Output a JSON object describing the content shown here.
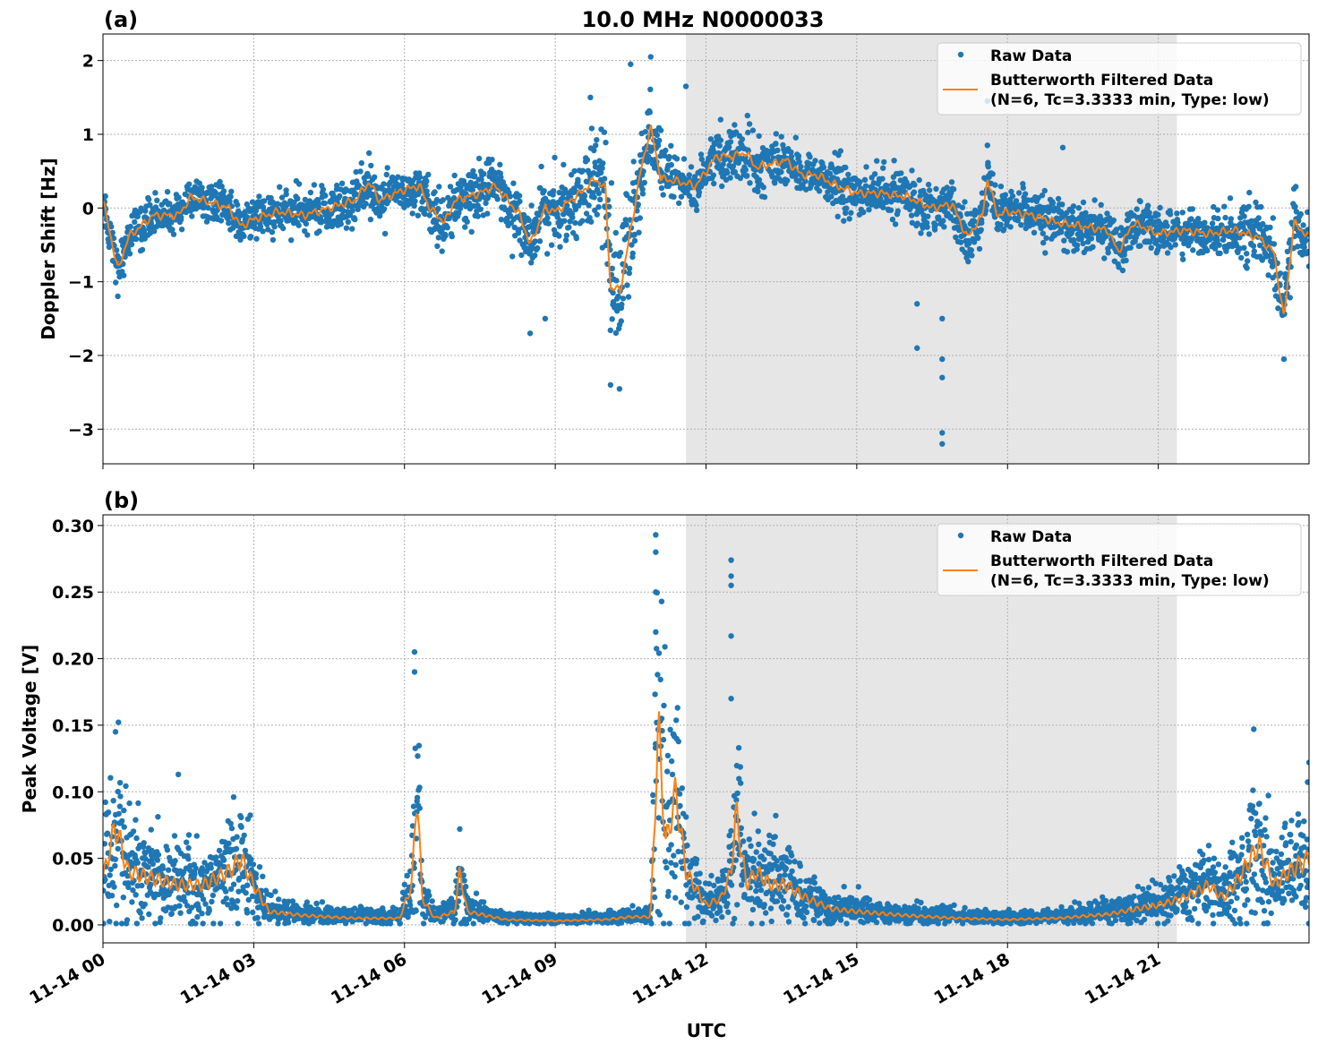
{
  "title": "10.0 MHz N0000033",
  "xlabel": "UTC",
  "colors": {
    "raw": "#1f77b4",
    "filtered": "#ff7f0e",
    "shade": "#e6e6e6"
  },
  "chart_data": [
    {
      "type": "scatter",
      "panel_label": "(a)",
      "ylabel": "Doppler Shift [Hz]",
      "xlim_hours": [
        0,
        24
      ],
      "ylim": [
        -3.47,
        2.36
      ],
      "yticks": [
        -3,
        -2,
        -1,
        0,
        1,
        2
      ],
      "ytick_labels": [
        "−3",
        "−2",
        "−1",
        "0",
        "1",
        "2"
      ],
      "xtick_hours": [
        0,
        3,
        6,
        9,
        12,
        15,
        18,
        21
      ],
      "xtick_labels": [
        "11-14 00",
        "11-14 03",
        "11-14 06",
        "11-14 09",
        "11-14 12",
        "11-14 15",
        "11-14 18",
        "11-14 21"
      ],
      "grid": true,
      "shaded_span_hours": [
        11.6,
        21.37
      ],
      "legend": {
        "placement": "upper right",
        "raw": "Raw Data",
        "filtered_line1": "Butterworth Filtered Data",
        "filtered_line2": "(N=6, Tc=3.3333 min, Type: low)"
      },
      "filtered": {
        "x_hours": [
          0,
          0.3,
          0.5,
          1,
          1.5,
          1.75,
          2,
          2.5,
          2.75,
          3,
          3.5,
          4,
          4.5,
          5,
          5.3,
          5.5,
          6,
          6.3,
          6.5,
          6.8,
          7,
          7.5,
          7.8,
          8,
          8.3,
          8.5,
          8.8,
          9,
          9.5,
          9.8,
          10,
          10.1,
          10.3,
          10.5,
          10.7,
          10.9,
          11.1,
          11.5,
          11.8,
          12,
          12.2,
          12.5,
          12.8,
          13,
          13.3,
          13.6,
          13.9,
          14.2,
          14.6,
          15,
          15.5,
          16,
          16.5,
          16.9,
          17.2,
          17.5,
          17.6,
          17.8,
          18,
          18.5,
          19,
          19.5,
          20,
          20.2,
          20.5,
          21,
          21.5,
          22,
          22.5,
          23,
          23.3,
          23.5,
          23.7,
          24
        ],
        "y": [
          0.1,
          -0.85,
          -0.4,
          -0.1,
          -0.1,
          0.15,
          0.1,
          0.0,
          -0.25,
          -0.15,
          -0.05,
          -0.1,
          0.0,
          0.1,
          0.35,
          0.1,
          0.25,
          0.3,
          0.0,
          -0.2,
          0.1,
          0.2,
          0.3,
          0.15,
          -0.1,
          -0.5,
          0.0,
          -0.05,
          0.2,
          0.4,
          0.25,
          -1.1,
          -1.1,
          -0.3,
          0.5,
          1.1,
          0.4,
          0.35,
          0.3,
          0.5,
          0.7,
          0.7,
          0.75,
          0.55,
          0.6,
          0.65,
          0.45,
          0.45,
          0.3,
          0.2,
          0.2,
          0.15,
          0.0,
          0.05,
          -0.4,
          -0.1,
          0.4,
          -0.1,
          -0.05,
          -0.1,
          -0.2,
          -0.25,
          -0.3,
          -0.6,
          -0.2,
          -0.35,
          -0.3,
          -0.35,
          -0.3,
          -0.4,
          -0.6,
          -1.5,
          -0.2,
          -0.4
        ]
      },
      "raw_spread": {
        "x_hours": [
          0,
          1,
          3,
          5,
          6,
          8,
          9.5,
          10,
          10.5,
          11,
          11.5,
          12,
          14,
          16,
          18,
          20,
          22,
          23.5,
          24
        ],
        "half_width": [
          0.35,
          0.25,
          0.3,
          0.4,
          0.35,
          0.45,
          0.5,
          0.9,
          1.0,
          0.6,
          0.25,
          0.4,
          0.35,
          0.35,
          0.35,
          0.35,
          0.3,
          0.5,
          0.35
        ]
      },
      "raw_outliers": [
        [
          16.2,
          -1.3
        ],
        [
          16.2,
          -1.9
        ],
        [
          16.7,
          -1.5
        ],
        [
          16.7,
          -2.05
        ],
        [
          16.7,
          -2.3
        ],
        [
          16.7,
          -3.05
        ],
        [
          16.7,
          -3.2
        ],
        [
          17.6,
          1.45
        ],
        [
          17.6,
          0.85
        ],
        [
          11.6,
          1.65
        ],
        [
          10.5,
          1.95
        ],
        [
          10.9,
          2.05
        ],
        [
          9.7,
          1.5
        ],
        [
          8.5,
          -1.7
        ],
        [
          8.8,
          -1.5
        ],
        [
          10.1,
          -2.4
        ],
        [
          23.5,
          -2.05
        ],
        [
          19.1,
          0.82
        ]
      ]
    },
    {
      "type": "scatter",
      "panel_label": "(b)",
      "ylabel": "Peak Voltage [V]",
      "xlim_hours": [
        0,
        24
      ],
      "ylim": [
        -0.0135,
        0.308
      ],
      "yticks": [
        0,
        0.05,
        0.1,
        0.15,
        0.2,
        0.25,
        0.3
      ],
      "ytick_labels": [
        "0.00",
        "0.05",
        "0.10",
        "0.15",
        "0.20",
        "0.25",
        "0.30"
      ],
      "xtick_hours": [
        0,
        3,
        6,
        9,
        12,
        15,
        18,
        21
      ],
      "xtick_labels": [
        "11-14 00",
        "11-14 03",
        "11-14 06",
        "11-14 09",
        "11-14 12",
        "11-14 15",
        "11-14 18",
        "11-14 21"
      ],
      "grid": true,
      "shaded_span_hours": [
        11.6,
        21.37
      ],
      "legend": {
        "placement": "upper right",
        "raw": "Raw Data",
        "filtered_line1": "Butterworth Filtered Data",
        "filtered_line2": "(N=6, Tc=3.3333 min, Type: low)"
      },
      "filtered": {
        "x_hours": [
          0,
          0.25,
          0.5,
          1,
          1.5,
          2,
          2.5,
          2.75,
          3,
          3.3,
          4,
          5,
          5.9,
          6.15,
          6.25,
          6.35,
          6.6,
          7,
          7.1,
          7.25,
          8,
          9,
          10,
          10.5,
          10.9,
          11.05,
          11.2,
          11.4,
          11.6,
          12,
          12.3,
          12.5,
          12.6,
          12.8,
          13,
          13.3,
          13.6,
          14,
          14.5,
          15,
          16,
          17,
          18,
          19,
          20,
          21,
          21.5,
          22,
          22.3,
          22.6,
          23,
          23.3,
          23.6,
          24
        ],
        "y": [
          0.035,
          0.075,
          0.04,
          0.035,
          0.03,
          0.03,
          0.04,
          0.05,
          0.03,
          0.01,
          0.007,
          0.005,
          0.005,
          0.03,
          0.105,
          0.02,
          0.005,
          0.01,
          0.04,
          0.01,
          0.004,
          0.003,
          0.004,
          0.006,
          0.006,
          0.15,
          0.06,
          0.1,
          0.04,
          0.015,
          0.02,
          0.04,
          0.085,
          0.03,
          0.04,
          0.03,
          0.03,
          0.02,
          0.012,
          0.01,
          0.007,
          0.005,
          0.004,
          0.005,
          0.008,
          0.015,
          0.02,
          0.03,
          0.02,
          0.035,
          0.06,
          0.03,
          0.04,
          0.05
        ]
      },
      "raw_outliers": [
        [
          11.0,
          0.293
        ],
        [
          11.0,
          0.28
        ],
        [
          11.0,
          0.25
        ],
        [
          11.0,
          0.22
        ],
        [
          12.5,
          0.274
        ],
        [
          12.5,
          0.262
        ],
        [
          12.5,
          0.255
        ],
        [
          12.5,
          0.217
        ],
        [
          12.5,
          0.17
        ],
        [
          6.2,
          0.205
        ],
        [
          6.2,
          0.19
        ],
        [
          0.25,
          0.145
        ],
        [
          1.5,
          0.113
        ],
        [
          22.9,
          0.147
        ],
        [
          7.1,
          0.072
        ],
        [
          2.6,
          0.096
        ],
        [
          24,
          0.122
        ]
      ]
    }
  ]
}
